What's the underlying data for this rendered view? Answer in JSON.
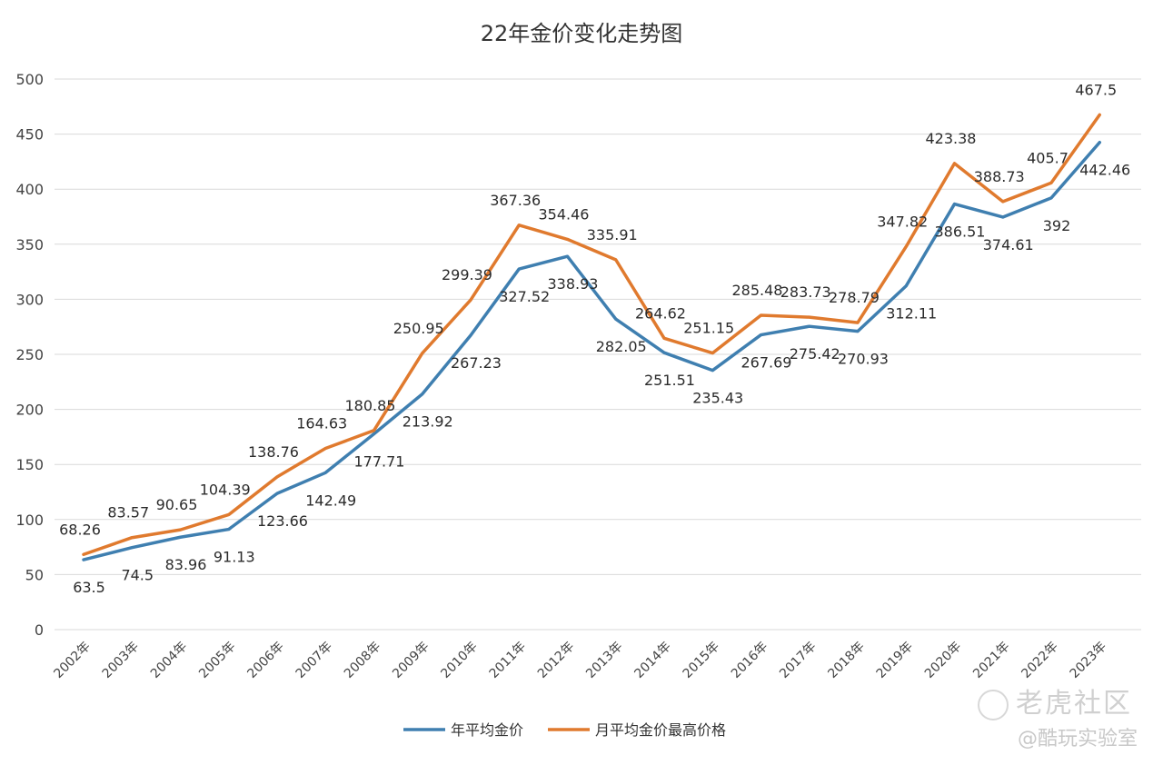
{
  "chart_data": {
    "type": "line",
    "title": "22年金价变化走势图",
    "xlabel": "",
    "ylabel": "",
    "ylim": [
      0,
      500
    ],
    "yticks": [
      0,
      50,
      100,
      150,
      200,
      250,
      300,
      350,
      400,
      450,
      500
    ],
    "grid": true,
    "legend_position": "bottom",
    "categories": [
      "2002年",
      "2003年",
      "2004年",
      "2005年",
      "2006年",
      "2007年",
      "2008年",
      "2009年",
      "2010年",
      "2011年",
      "2012年",
      "2013年",
      "2014年",
      "2015年",
      "2016年",
      "2017年",
      "2018年",
      "2019年",
      "2020年",
      "2021年",
      "2022年",
      "2023年"
    ],
    "series": [
      {
        "name": "年平均金价",
        "color": "#3f7fb0",
        "values": [
          63.5,
          74.5,
          83.96,
          91.13,
          123.66,
          142.49,
          177.71,
          213.92,
          267.23,
          327.52,
          338.93,
          282.05,
          251.51,
          235.43,
          267.69,
          275.42,
          270.93,
          312.11,
          386.51,
          374.61,
          392,
          442.46
        ],
        "labels": [
          "63.5",
          "74.5",
          "83.96",
          "91.13",
          "123.66",
          "142.49",
          "177.71",
          "213.92",
          "267.23",
          "327.52",
          "338.93",
          "282.05",
          "251.51",
          "235.43",
          "267.69",
          "275.42",
          "270.93",
          "312.11",
          "386.51",
          "374.61",
          "392",
          "442.46"
        ]
      },
      {
        "name": "月平均金价最高价格",
        "color": "#e07a2e",
        "values": [
          68.26,
          83.57,
          90.65,
          104.39,
          138.76,
          164.63,
          180.85,
          250.95,
          299.39,
          367.36,
          354.46,
          335.91,
          264.62,
          251.15,
          285.48,
          283.73,
          278.79,
          347.82,
          423.38,
          388.73,
          405.7,
          467.5
        ],
        "labels": [
          "68.26",
          "83.57",
          "90.65",
          "104.39",
          "138.76",
          "164.63",
          "180.85",
          "250.95",
          "299.39",
          "367.36",
          "354.46",
          "335.91",
          "264.62",
          "251.15",
          "285.48",
          "283.73",
          "278.79",
          "347.82",
          "423.38",
          "388.73",
          "405.7",
          "467.5"
        ]
      }
    ]
  },
  "watermarks": {
    "line1": "老虎社区",
    "line2": "@酷玩实验室"
  }
}
